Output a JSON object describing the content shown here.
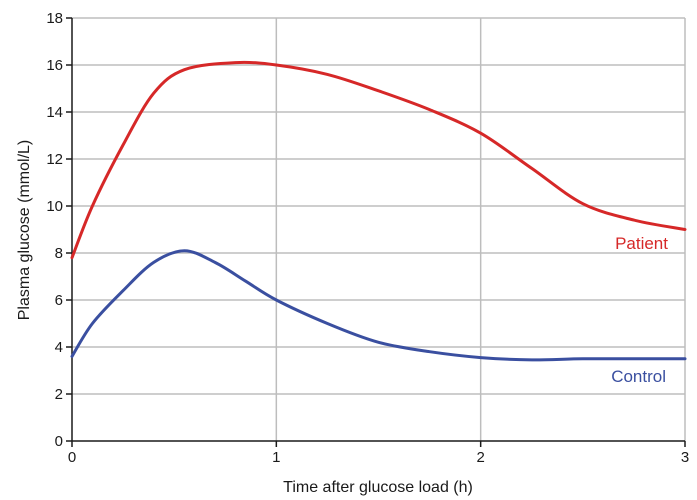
{
  "chart_data": {
    "type": "line",
    "title": "",
    "xlabel": "Time after glucose load (h)",
    "ylabel": "Plasma glucose (mmol/L)",
    "xlim": [
      0,
      3
    ],
    "ylim": [
      0,
      18
    ],
    "xticks": [
      0,
      1,
      2,
      3
    ],
    "yticks": [
      0,
      2,
      4,
      6,
      8,
      10,
      12,
      14,
      16,
      18
    ],
    "grid": true,
    "series": [
      {
        "name": "Patient",
        "color": "#d62828",
        "points": [
          [
            0,
            7.8
          ],
          [
            0.1,
            10.0
          ],
          [
            0.25,
            12.6
          ],
          [
            0.4,
            14.8
          ],
          [
            0.55,
            15.8
          ],
          [
            0.8,
            16.1
          ],
          [
            1.0,
            16.0
          ],
          [
            1.25,
            15.6
          ],
          [
            1.5,
            14.9
          ],
          [
            1.75,
            14.1
          ],
          [
            2.0,
            13.1
          ],
          [
            2.25,
            11.6
          ],
          [
            2.5,
            10.1
          ],
          [
            2.75,
            9.4
          ],
          [
            3.0,
            9.0
          ]
        ]
      },
      {
        "name": "Control",
        "color": "#3a4fa0",
        "points": [
          [
            0,
            3.6
          ],
          [
            0.1,
            5.0
          ],
          [
            0.25,
            6.4
          ],
          [
            0.4,
            7.6
          ],
          [
            0.55,
            8.1
          ],
          [
            0.7,
            7.6
          ],
          [
            0.85,
            6.8
          ],
          [
            1.0,
            6.0
          ],
          [
            1.25,
            5.0
          ],
          [
            1.5,
            4.2
          ],
          [
            1.75,
            3.8
          ],
          [
            2.0,
            3.55
          ],
          [
            2.25,
            3.45
          ],
          [
            2.5,
            3.5
          ],
          [
            2.75,
            3.5
          ],
          [
            3.0,
            3.5
          ]
        ]
      }
    ]
  }
}
